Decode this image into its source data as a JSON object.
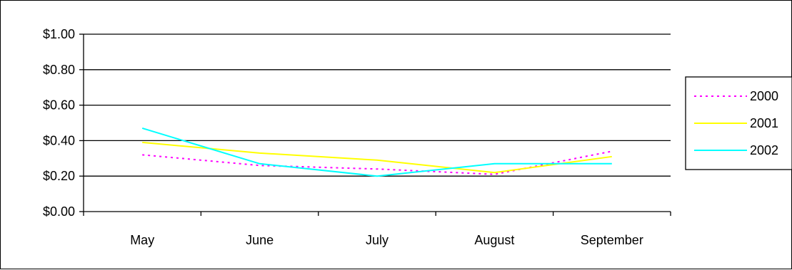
{
  "chart_data": {
    "type": "line",
    "categories": [
      "May",
      "June",
      "July",
      "August",
      "September"
    ],
    "series": [
      {
        "name": "2000",
        "color": "#ff00ff",
        "dash": "dotted",
        "values": [
          0.32,
          0.26,
          0.24,
          0.21,
          0.34
        ]
      },
      {
        "name": "2001",
        "color": "#ffff00",
        "dash": "solid",
        "values": [
          0.39,
          0.33,
          0.29,
          0.22,
          0.31
        ]
      },
      {
        "name": "2002",
        "color": "#00ffff",
        "dash": "solid",
        "values": [
          0.47,
          0.27,
          0.2,
          0.27,
          0.27
        ]
      }
    ],
    "ylim": [
      0,
      1.0
    ],
    "ytick_labels": [
      "$0.00",
      "$0.20",
      "$0.40",
      "$0.60",
      "$0.80",
      "$1.00"
    ],
    "grid": true,
    "legend_position": "right"
  }
}
